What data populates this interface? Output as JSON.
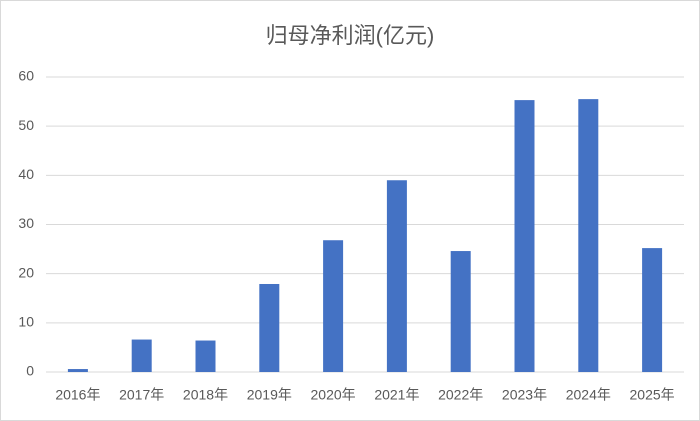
{
  "chart_data": {
    "type": "bar",
    "title": "归母净利润(亿元)",
    "categories": [
      "2016年",
      "2017年",
      "2018年",
      "2019年",
      "2020年",
      "2021年",
      "2022年",
      "2023年",
      "2024年",
      "2025年"
    ],
    "values": [
      0.6,
      6.6,
      6.4,
      17.9,
      26.8,
      39.0,
      24.6,
      55.3,
      55.5,
      25.2
    ],
    "color": "#4472c4",
    "ylim": [
      0,
      60
    ],
    "yticks": [
      0,
      10,
      20,
      30,
      40,
      50,
      60
    ],
    "grid": true
  }
}
